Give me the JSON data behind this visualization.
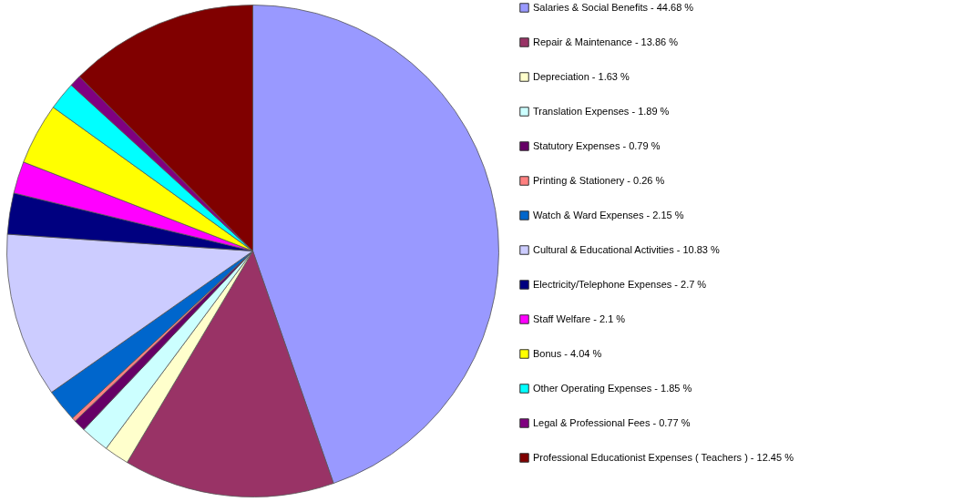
{
  "chart_data": {
    "type": "pie",
    "legend": "right",
    "categories": [
      "Salaries & Social Benefits - 44.68 %",
      "Repair & Maintenance - 13.86 %",
      "Depreciation - 1.63 %",
      "Translation Expenses - 1.89 %",
      "Statutory Expenses - 0.79 %",
      "Printing & Stationery - 0.26 %",
      "Watch & Ward Expenses - 2.15 %",
      "Cultural & Educational Activities - 10.83 %",
      "Electricity/Telephone Expenses - 2.7 %",
      "Staff Welfare - 2.1 %",
      "Bonus - 4.04 %",
      "Other Operating Expenses - 1.85 %",
      "Legal & Professional Fees - 0.77 %",
      "Professional Educationist Expenses ( Teachers ) - 12.45 %"
    ],
    "values": [
      44.68,
      13.86,
      1.63,
      1.89,
      0.79,
      0.26,
      2.15,
      10.83,
      2.7,
      2.1,
      4.04,
      1.85,
      0.77,
      12.45
    ],
    "colors": [
      "#9999ff",
      "#993366",
      "#ffffcc",
      "#ccffff",
      "#660066",
      "#ff8080",
      "#0066cc",
      "#ccccff",
      "#000080",
      "#ff00ff",
      "#ffff00",
      "#00ffff",
      "#800080",
      "#800000"
    ]
  }
}
